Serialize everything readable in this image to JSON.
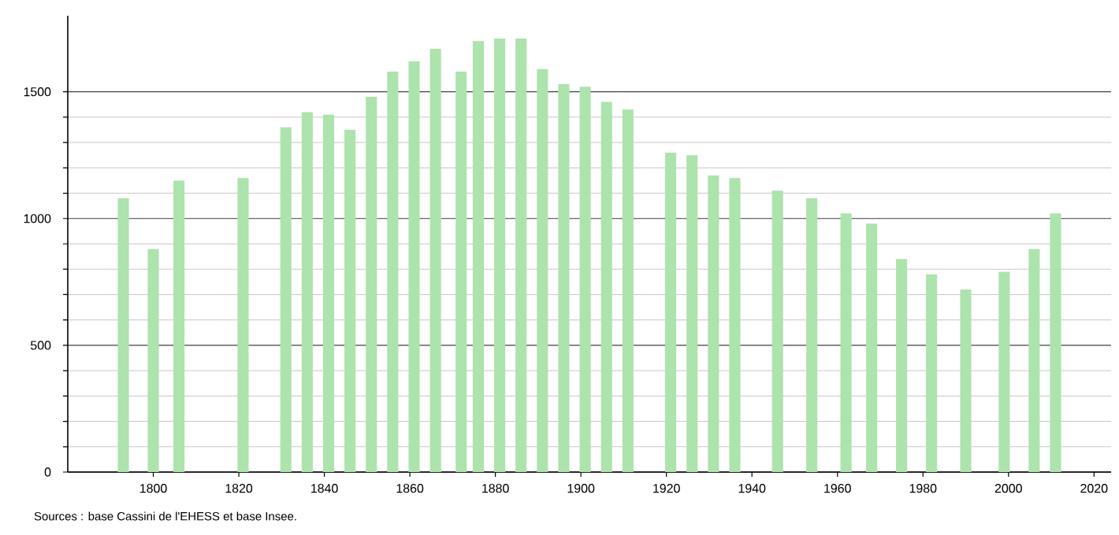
{
  "chart_data": {
    "type": "bar",
    "x": [
      1793,
      1800,
      1806,
      1821,
      1831,
      1836,
      1841,
      1846,
      1851,
      1856,
      1861,
      1866,
      1872,
      1876,
      1881,
      1886,
      1891,
      1896,
      1901,
      1906,
      1911,
      1921,
      1926,
      1931,
      1936,
      1946,
      1954,
      1962,
      1968,
      1975,
      1982,
      1990,
      1999,
      2006,
      2011
    ],
    "values": [
      1080,
      880,
      1150,
      1160,
      1360,
      1420,
      1410,
      1350,
      1480,
      1580,
      1620,
      1670,
      1580,
      1700,
      1710,
      1710,
      1590,
      1530,
      1520,
      1460,
      1430,
      1260,
      1250,
      1170,
      1160,
      1110,
      1080,
      1020,
      980,
      840,
      780,
      720,
      790,
      880,
      1020
    ],
    "color": "#ade3ad",
    "xlim": [
      1780,
      2024
    ],
    "xticks": [
      1800,
      1820,
      1840,
      1860,
      1880,
      1900,
      1920,
      1940,
      1960,
      1980,
      2000,
      2020
    ],
    "ylim": [
      0,
      1800
    ],
    "yticks": [
      0,
      500,
      1000,
      1500
    ],
    "grid": "y",
    "annotations": [
      "Sources : base Cassini de l'EHESS et base Insee."
    ]
  }
}
